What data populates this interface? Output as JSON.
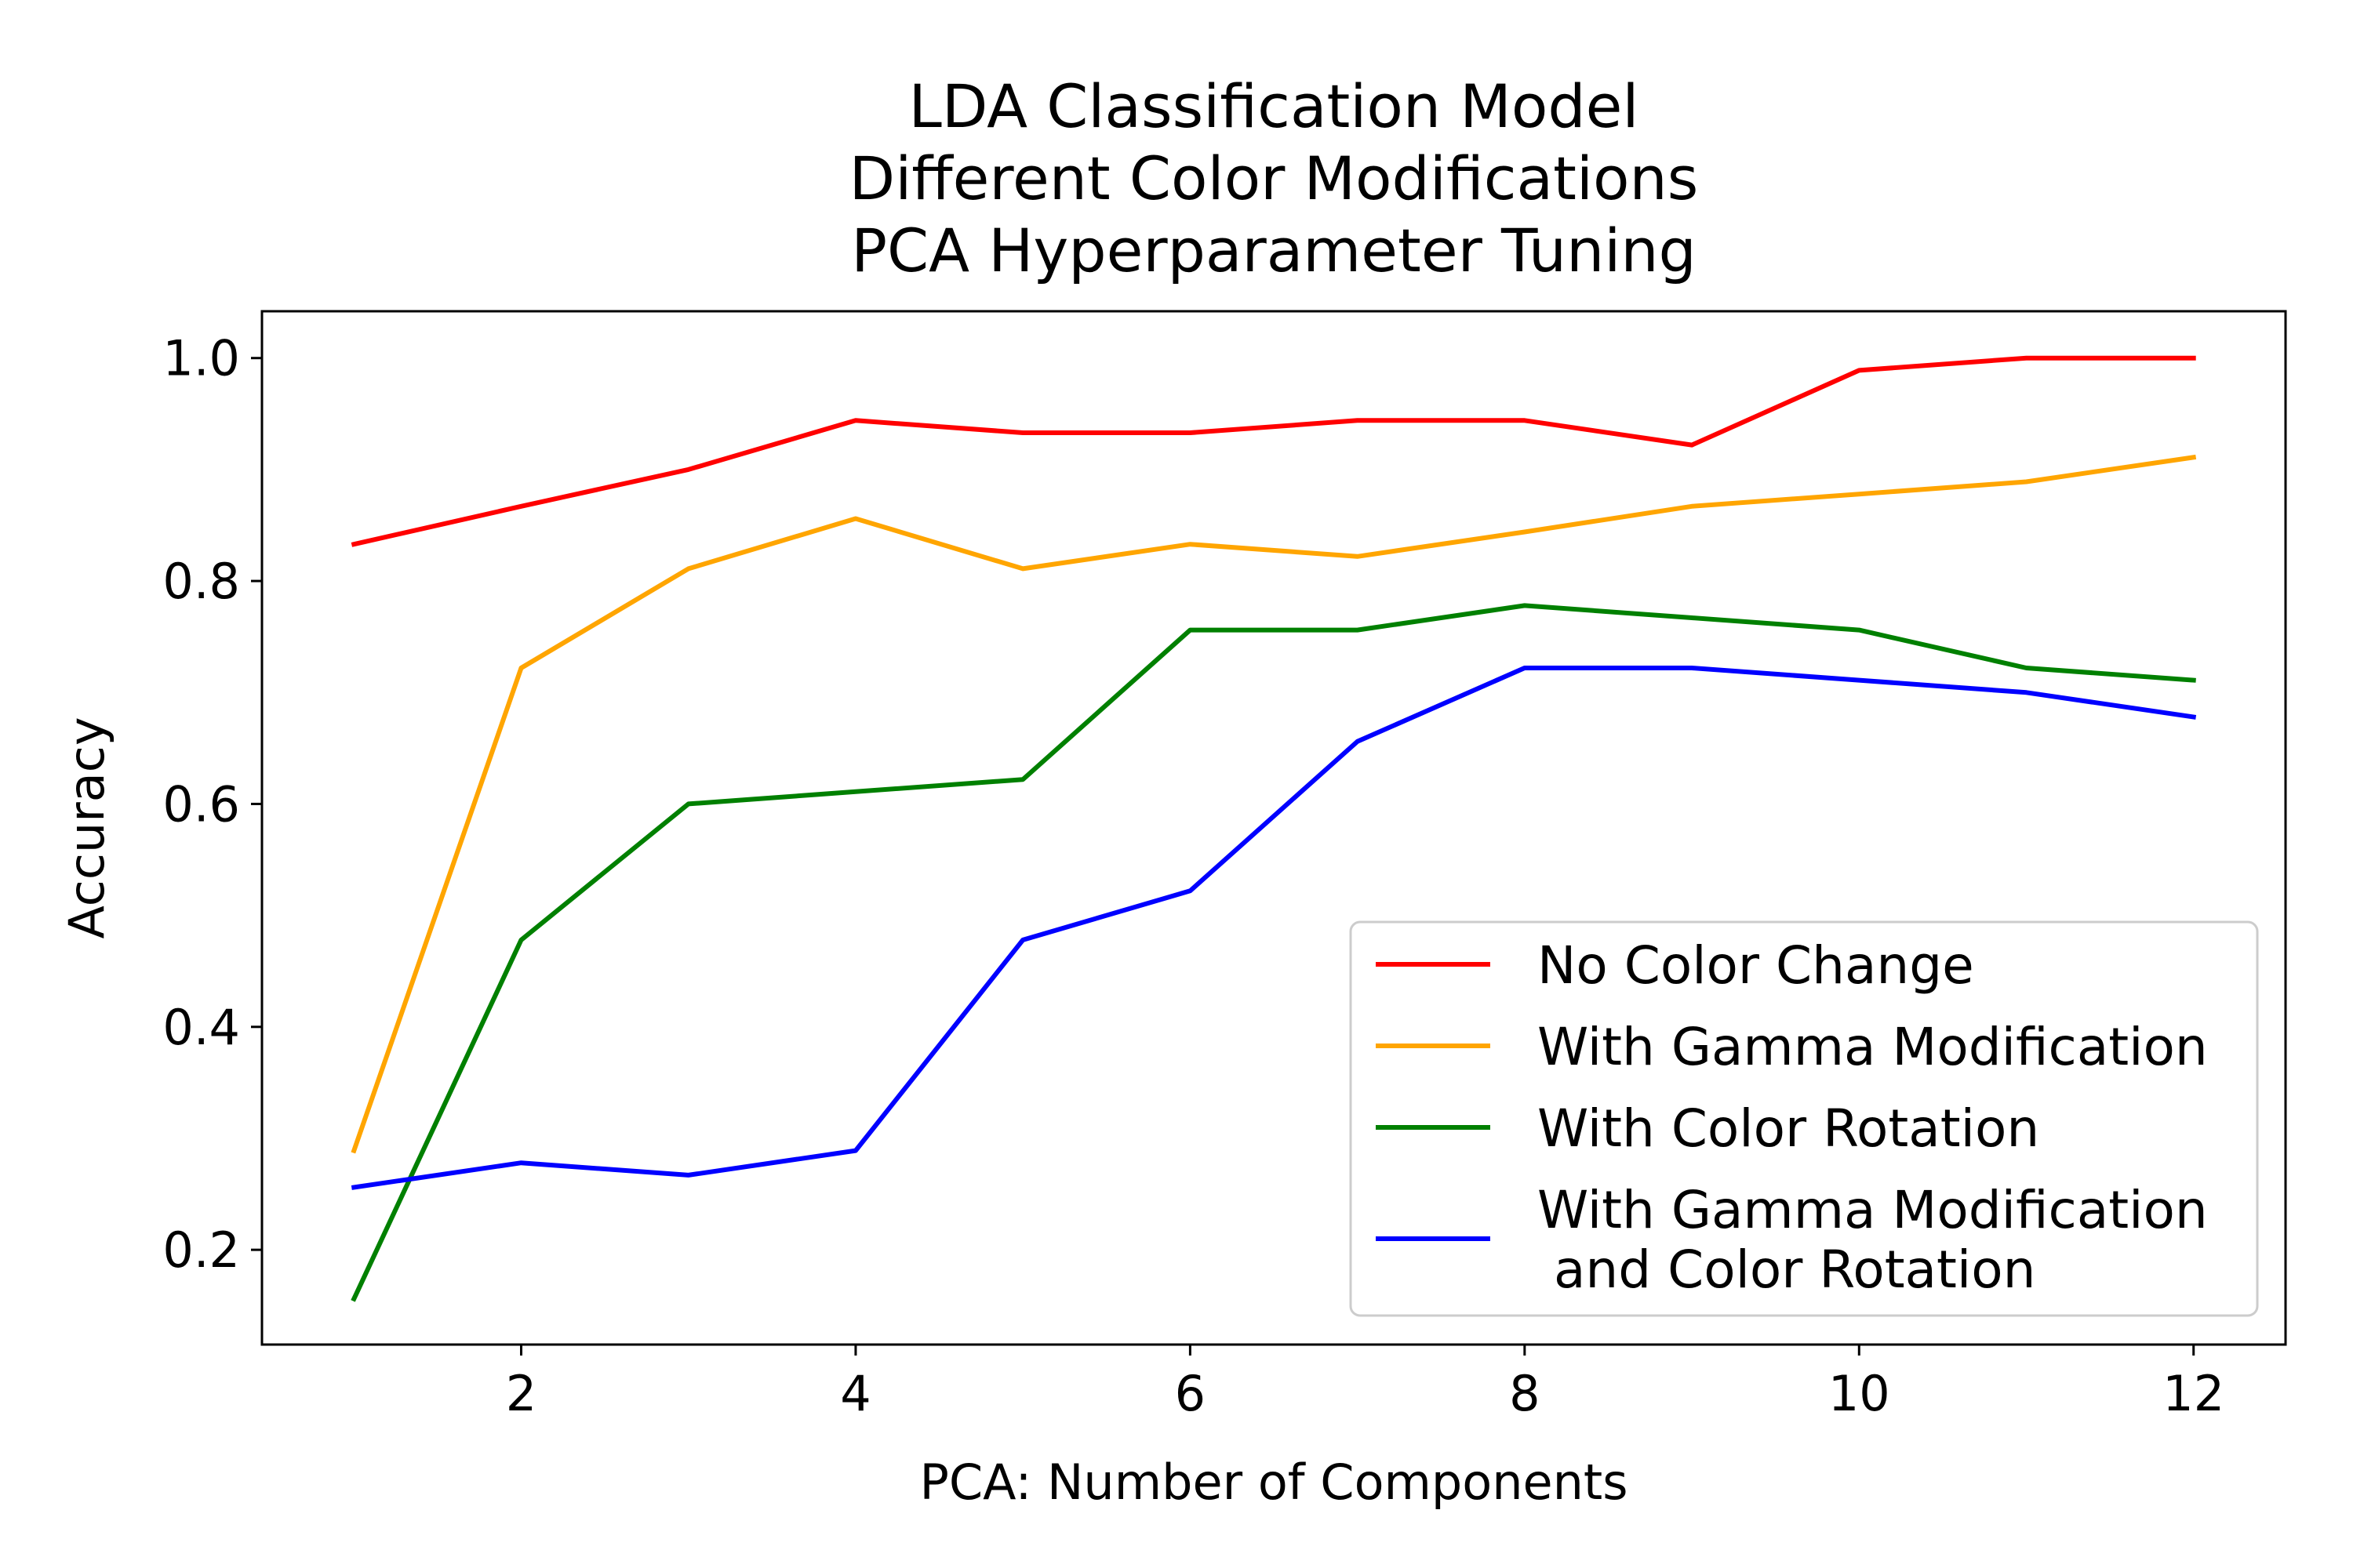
{
  "chart_data": {
    "type": "line",
    "title_lines": [
      "LDA Classification Model",
      "Different Color Modifications",
      "PCA Hyperparameter Tuning"
    ],
    "xlabel": "PCA: Number of Components",
    "ylabel": "Accuracy",
    "xlim": [
      0.45,
      12.55
    ],
    "ylim": [
      0.115,
      1.042
    ],
    "xticks": [
      2,
      4,
      6,
      8,
      10,
      12
    ],
    "xtick_labels": [
      "2",
      "4",
      "6",
      "8",
      "10",
      "12"
    ],
    "yticks": [
      0.2,
      0.4,
      0.6,
      0.8,
      1.0
    ],
    "ytick_labels": [
      "0.2",
      "0.4",
      "0.6",
      "0.8",
      "1.0"
    ],
    "grid": false,
    "legend_position": "lower-right",
    "x": [
      1,
      2,
      3,
      4,
      5,
      6,
      7,
      8,
      9,
      10,
      11,
      12
    ],
    "series": [
      {
        "name": "No Color Change",
        "legend_lines": [
          "No Color Change"
        ],
        "color": "#ff0000",
        "values": [
          0.833,
          0.867,
          0.9,
          0.944,
          0.933,
          0.933,
          0.944,
          0.944,
          0.922,
          0.989,
          1.0,
          1.0
        ]
      },
      {
        "name": "With Gamma Modification",
        "legend_lines": [
          "With Gamma Modification"
        ],
        "color": "#ffa500",
        "values": [
          0.289,
          0.722,
          0.811,
          0.856,
          0.811,
          0.833,
          0.822,
          0.844,
          0.867,
          0.878,
          0.889,
          0.911
        ]
      },
      {
        "name": "With Color Rotation",
        "legend_lines": [
          "With Color Rotation"
        ],
        "color": "#008000",
        "values": [
          0.156,
          0.478,
          0.6,
          0.611,
          0.622,
          0.756,
          0.756,
          0.778,
          0.767,
          0.756,
          0.722,
          0.711
        ]
      },
      {
        "name": "With Gamma Modification\n and Color Rotation",
        "legend_lines": [
          "With Gamma Modification",
          " and Color Rotation"
        ],
        "color": "#0000ff",
        "values": [
          0.256,
          0.278,
          0.267,
          0.289,
          0.478,
          0.522,
          0.656,
          0.722,
          0.722,
          0.711,
          0.7,
          0.678
        ]
      }
    ]
  }
}
